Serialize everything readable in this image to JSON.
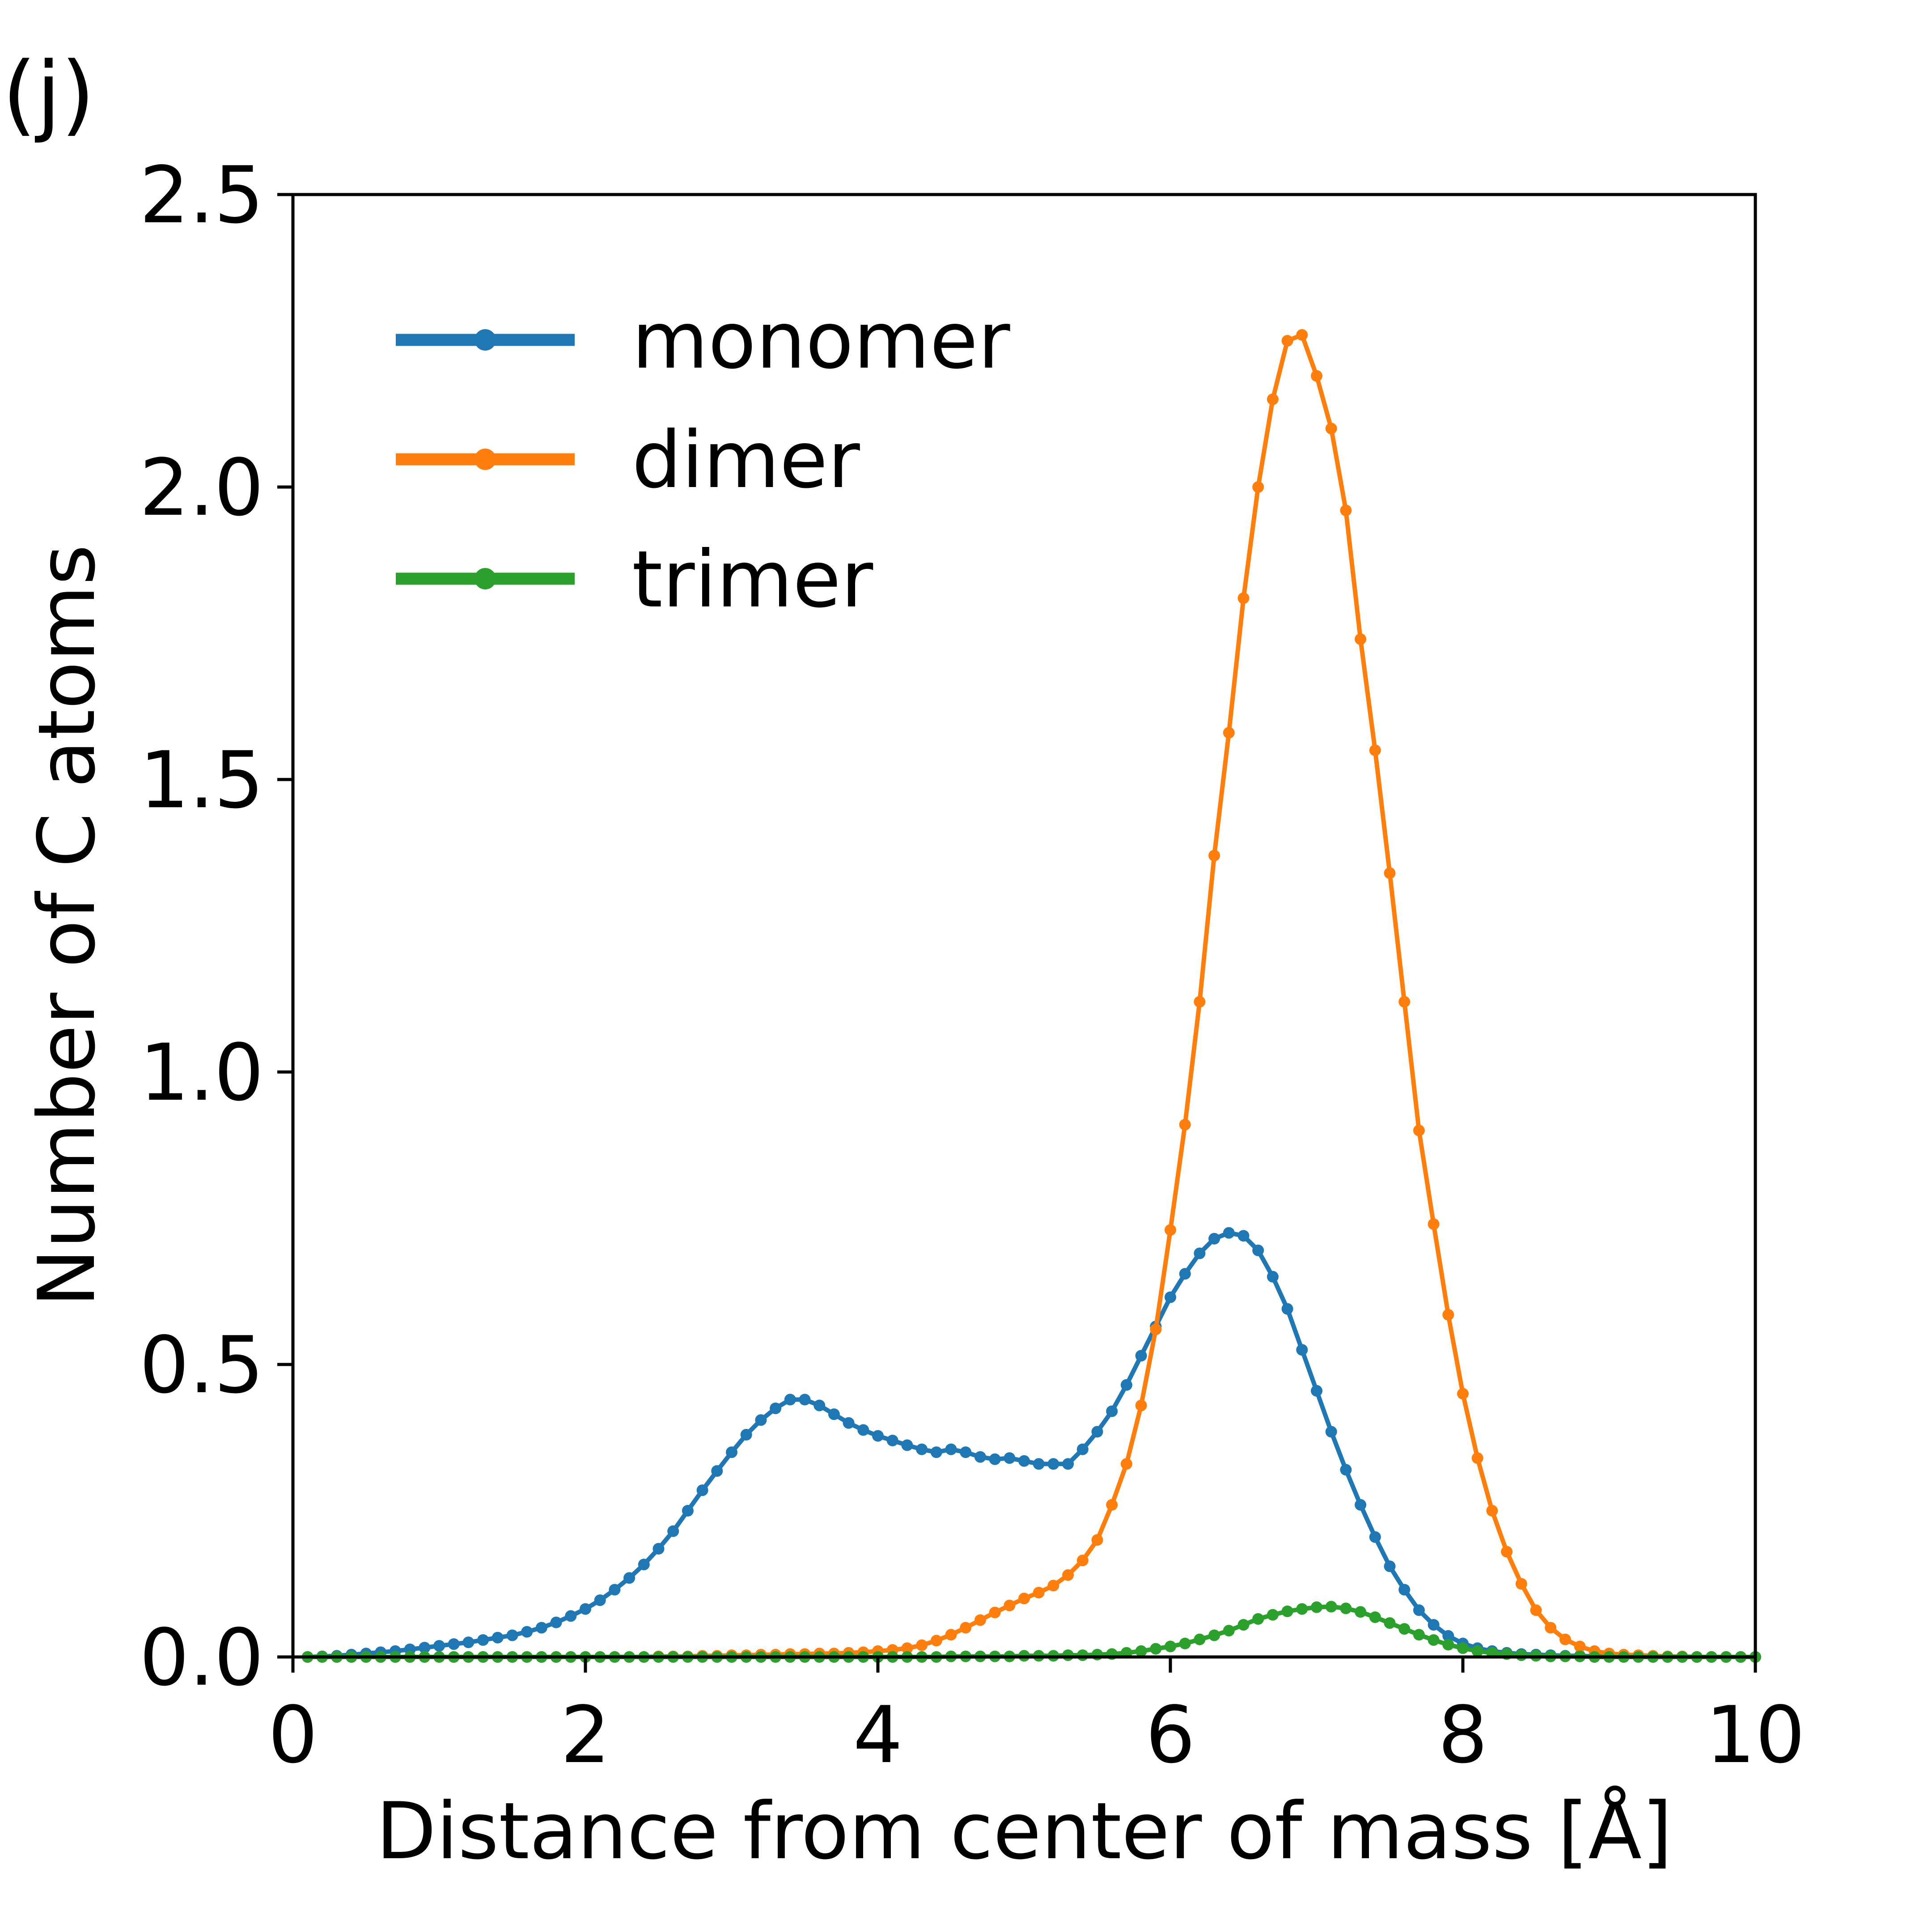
{
  "panel_label": "(j)",
  "chart_data": {
    "type": "line",
    "title": "",
    "xlabel": "Distance from center of mass [Å]",
    "ylabel": "Number of C atoms",
    "xlim": [
      0,
      10
    ],
    "ylim": [
      0,
      2.5
    ],
    "xticks": [
      0,
      2,
      4,
      6,
      8,
      10
    ],
    "xtick_labels": [
      "0",
      "2",
      "4",
      "6",
      "8",
      "10"
    ],
    "yticks": [
      0,
      0.5,
      1,
      1.5,
      2,
      2.5
    ],
    "ytick_labels": [
      "0.0",
      "0.5",
      "1.0",
      "1.5",
      "2.0",
      "2.5"
    ],
    "grid": false,
    "legend_position": "top-left",
    "x": [
      0.1,
      0.2,
      0.3,
      0.4,
      0.5,
      0.6,
      0.7,
      0.8,
      0.9,
      1.0,
      1.1,
      1.2,
      1.3,
      1.4,
      1.5,
      1.6,
      1.7,
      1.8,
      1.9,
      2.0,
      2.1,
      2.2,
      2.3,
      2.4,
      2.5,
      2.6,
      2.7,
      2.8,
      2.9,
      3.0,
      3.1,
      3.2,
      3.3,
      3.4,
      3.5,
      3.6,
      3.7,
      3.8,
      3.9,
      4.0,
      4.1,
      4.2,
      4.3,
      4.4,
      4.5,
      4.6,
      4.7,
      4.8,
      4.9,
      5.0,
      5.1,
      5.2,
      5.3,
      5.4,
      5.5,
      5.6,
      5.7,
      5.8,
      5.9,
      6.0,
      6.1,
      6.2,
      6.3,
      6.4,
      6.5,
      6.6,
      6.7,
      6.8,
      6.9,
      7.0,
      7.1,
      7.2,
      7.3,
      7.4,
      7.5,
      7.6,
      7.7,
      7.8,
      7.9,
      8.0,
      8.1,
      8.2,
      8.3,
      8.4,
      8.5,
      8.6,
      8.7,
      8.8,
      8.9,
      9.0,
      9.1,
      9.2,
      9.3,
      9.4,
      9.5,
      9.6,
      9.7,
      9.8,
      9.9,
      10.0
    ],
    "series": [
      {
        "name": "monomer",
        "color": "#1f77b4",
        "values": [
          0.0,
          0.001,
          0.002,
          0.004,
          0.006,
          0.008,
          0.01,
          0.013,
          0.016,
          0.019,
          0.022,
          0.025,
          0.029,
          0.033,
          0.037,
          0.043,
          0.05,
          0.059,
          0.07,
          0.082,
          0.097,
          0.115,
          0.135,
          0.158,
          0.185,
          0.215,
          0.25,
          0.285,
          0.318,
          0.35,
          0.38,
          0.405,
          0.425,
          0.44,
          0.44,
          0.43,
          0.415,
          0.4,
          0.388,
          0.378,
          0.37,
          0.362,
          0.355,
          0.35,
          0.355,
          0.35,
          0.342,
          0.338,
          0.34,
          0.335,
          0.33,
          0.33,
          0.33,
          0.355,
          0.385,
          0.42,
          0.465,
          0.515,
          0.565,
          0.615,
          0.655,
          0.69,
          0.715,
          0.725,
          0.72,
          0.695,
          0.65,
          0.595,
          0.525,
          0.455,
          0.385,
          0.32,
          0.26,
          0.205,
          0.155,
          0.115,
          0.08,
          0.055,
          0.036,
          0.023,
          0.015,
          0.01,
          0.007,
          0.005,
          0.004,
          0.003,
          0.002,
          0.002,
          0.001,
          0.001,
          0.001,
          0.001,
          0.0,
          0.0,
          0.0,
          0.0,
          0.0,
          0.0,
          0.0,
          0.0
        ]
      },
      {
        "name": "dimer",
        "color": "#ff7f0e",
        "values": [
          0.0,
          0.0,
          0.0,
          0.0,
          0.0,
          0.0,
          0.0,
          0.0,
          0.0,
          0.0,
          0.0,
          0.0,
          0.0,
          0.0,
          0.0,
          0.0,
          0.0,
          0.0,
          0.0,
          0.0,
          0.0,
          0.0,
          0.0,
          0.0,
          0.001,
          0.001,
          0.001,
          0.002,
          0.002,
          0.003,
          0.003,
          0.004,
          0.004,
          0.005,
          0.005,
          0.006,
          0.006,
          0.007,
          0.008,
          0.01,
          0.012,
          0.015,
          0.02,
          0.028,
          0.038,
          0.05,
          0.063,
          0.076,
          0.088,
          0.1,
          0.11,
          0.122,
          0.14,
          0.165,
          0.2,
          0.26,
          0.33,
          0.43,
          0.56,
          0.73,
          0.91,
          1.12,
          1.37,
          1.58,
          1.81,
          2.0,
          2.15,
          2.25,
          2.26,
          2.19,
          2.1,
          1.96,
          1.74,
          1.55,
          1.34,
          1.12,
          0.9,
          0.74,
          0.585,
          0.45,
          0.34,
          0.25,
          0.18,
          0.125,
          0.08,
          0.05,
          0.03,
          0.018,
          0.01,
          0.006,
          0.004,
          0.003,
          0.002,
          0.001,
          0.001,
          0.0,
          0.0,
          0.0,
          0.0,
          0.0
        ]
      },
      {
        "name": "trimer",
        "color": "#2ca02c",
        "values": [
          0.0,
          0.0,
          0.0,
          0.0,
          0.0,
          0.0,
          0.0,
          0.0,
          0.0,
          0.0,
          0.0,
          0.0,
          0.0,
          0.0,
          0.0,
          0.0,
          0.0,
          0.0,
          0.0,
          0.0,
          0.0,
          0.0,
          0.0,
          0.0,
          0.0,
          0.0,
          0.0,
          0.0,
          0.0,
          0.0,
          0.0,
          0.0,
          0.0,
          0.0,
          0.0,
          0.0,
          0.0,
          0.0,
          0.0,
          0.0,
          0.0,
          0.0,
          0.0,
          0.0,
          0.001,
          0.001,
          0.001,
          0.001,
          0.001,
          0.002,
          0.002,
          0.002,
          0.003,
          0.003,
          0.004,
          0.005,
          0.007,
          0.01,
          0.014,
          0.018,
          0.023,
          0.03,
          0.037,
          0.045,
          0.055,
          0.065,
          0.072,
          0.078,
          0.082,
          0.085,
          0.086,
          0.083,
          0.077,
          0.068,
          0.058,
          0.048,
          0.038,
          0.029,
          0.021,
          0.015,
          0.01,
          0.007,
          0.005,
          0.003,
          0.002,
          0.001,
          0.001,
          0.001,
          0.0,
          0.0,
          0.0,
          0.0,
          0.0,
          0.0,
          0.0,
          0.0,
          0.0,
          0.0,
          0.0,
          0.0
        ]
      }
    ]
  }
}
